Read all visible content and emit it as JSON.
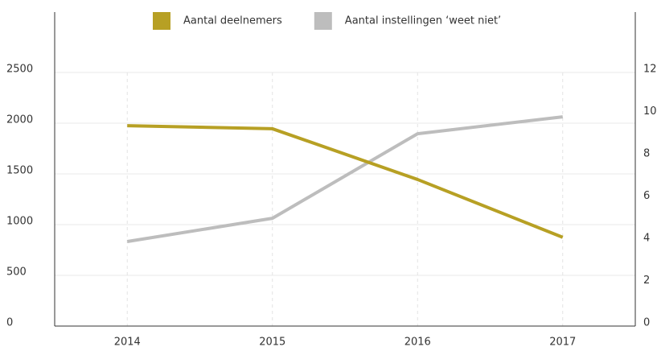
{
  "chart_data": {
    "type": "line",
    "categories": [
      "2014",
      "2015",
      "2016",
      "2017"
    ],
    "series": [
      {
        "name": "Aantal deelnemers",
        "color": "#b7a024",
        "values": [
          1975,
          1945,
          1445,
          875
        ]
      },
      {
        "name": "Aantal instellingen ‘weet niet’",
        "color": "#bdbdbd",
        "values": [
          4,
          5.1,
          9.1,
          9.9
        ],
        "axis": "y2"
      }
    ],
    "ylim": [
      0,
      3000
    ],
    "yticks": [
      0,
      500,
      1000,
      1500,
      2000,
      2500
    ],
    "y2lim": [
      0,
      14.4
    ],
    "y2ticks": [
      0,
      2,
      4,
      6,
      8,
      10,
      12
    ],
    "grid": true,
    "legend": "top"
  }
}
